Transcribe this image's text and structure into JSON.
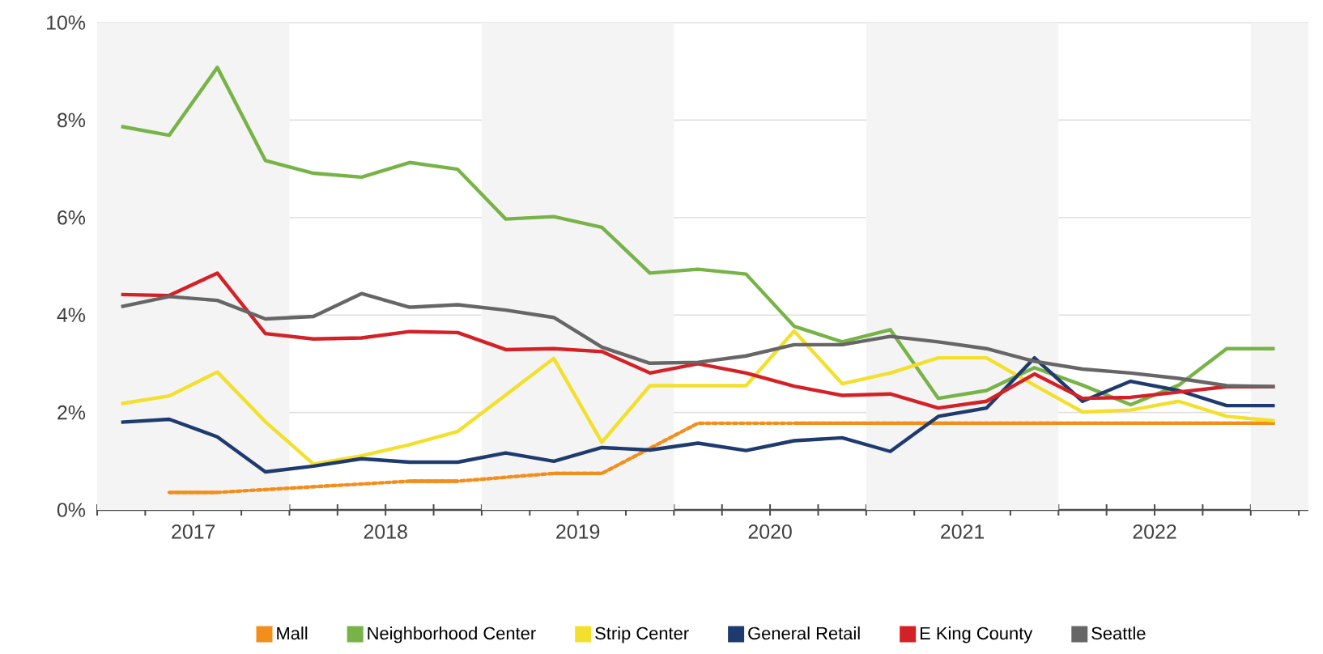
{
  "chart_data": {
    "type": "line",
    "x": [
      2017.125,
      2017.375,
      2017.625,
      2017.875,
      2018.125,
      2018.375,
      2018.625,
      2018.875,
      2019.125,
      2019.375,
      2019.625,
      2019.875,
      2020.125,
      2020.375,
      2020.625,
      2020.875,
      2021.125,
      2021.375,
      2021.625,
      2021.875,
      2022.125,
      2022.375,
      2022.625,
      2022.875,
      2023.125
    ],
    "xlim": [
      2017,
      2023.3
    ],
    "xticks": [
      {
        "value": 2017,
        "label": null
      },
      {
        "value": 2017.25,
        "label": null
      },
      {
        "value": 2017.5,
        "label": "2017"
      },
      {
        "value": 2017.75,
        "label": null
      },
      {
        "value": 2018,
        "label": null
      },
      {
        "value": 2018.25,
        "label": null
      },
      {
        "value": 2018.5,
        "label": "2018"
      },
      {
        "value": 2018.75,
        "label": null
      },
      {
        "value": 2019,
        "label": null
      },
      {
        "value": 2019.25,
        "label": null
      },
      {
        "value": 2019.5,
        "label": "2019"
      },
      {
        "value": 2019.75,
        "label": null
      },
      {
        "value": 2020,
        "label": null
      },
      {
        "value": 2020.25,
        "label": null
      },
      {
        "value": 2020.5,
        "label": "2020"
      },
      {
        "value": 2020.75,
        "label": null
      },
      {
        "value": 2021,
        "label": null
      },
      {
        "value": 2021.25,
        "label": null
      },
      {
        "value": 2021.5,
        "label": "2021"
      },
      {
        "value": 2021.75,
        "label": null
      },
      {
        "value": 2022,
        "label": null
      },
      {
        "value": 2022.25,
        "label": null
      },
      {
        "value": 2022.5,
        "label": "2022"
      },
      {
        "value": 2022.75,
        "label": null
      },
      {
        "value": 2023,
        "label": null
      },
      {
        "value": 2023.25,
        "label": null
      }
    ],
    "ylim": [
      0,
      10
    ],
    "yticks": [
      {
        "value": 0,
        "label": "0%"
      },
      {
        "value": 2,
        "label": "2%"
      },
      {
        "value": 4,
        "label": "4%"
      },
      {
        "value": 6,
        "label": "6%"
      },
      {
        "value": 8,
        "label": "8%"
      },
      {
        "value": 10,
        "label": "10%"
      }
    ],
    "grid": "y",
    "legend": "bottom",
    "marker": "none",
    "line_style": "solid",
    "bands": [
      {
        "axis": "x",
        "from": 2017,
        "to": 2018,
        "color": "#f4f4f4"
      },
      {
        "axis": "x",
        "from": 2019,
        "to": 2020,
        "color": "#f4f4f4"
      },
      {
        "axis": "x",
        "from": 2021,
        "to": 2022,
        "color": "#f4f4f4"
      },
      {
        "axis": "x",
        "from": 2023,
        "to": 2023.3,
        "color": "#f4f4f4"
      }
    ],
    "series": [
      {
        "name": "Mall",
        "color": "#f28e1c",
        "values": [
          null,
          0.36,
          0.36,
          null,
          null,
          null,
          0.59,
          0.59,
          null,
          0.75,
          0.75,
          null,
          1.78,
          null,
          1.78,
          1.78,
          1.78,
          1.78,
          1.78,
          1.78,
          1.78,
          1.78,
          1.78,
          1.78,
          1.78
        ]
      },
      {
        "name": "Neighborhood Center",
        "color": "#77b347",
        "values": [
          7.87,
          7.69,
          9.08,
          7.17,
          6.91,
          6.83,
          7.13,
          6.99,
          5.97,
          6.02,
          5.8,
          4.86,
          4.94,
          4.84,
          3.77,
          3.45,
          3.7,
          2.29,
          2.45,
          2.92,
          2.56,
          2.16,
          2.56,
          3.31,
          3.31
        ]
      },
      {
        "name": "Strip Center",
        "color": "#f2e02c",
        "values": [
          2.18,
          2.34,
          2.83,
          1.81,
          0.94,
          1.11,
          1.34,
          1.61,
          2.36,
          3.11,
          1.39,
          2.55,
          2.55,
          2.55,
          3.67,
          2.59,
          2.81,
          3.12,
          3.12,
          2.56,
          2.01,
          2.05,
          2.23,
          1.92,
          1.83
        ]
      },
      {
        "name": "General Retail",
        "color": "#1f3a6e",
        "values": [
          1.8,
          1.86,
          1.5,
          0.78,
          0.9,
          1.05,
          0.98,
          0.98,
          1.17,
          1.0,
          1.28,
          1.23,
          1.37,
          1.22,
          1.42,
          1.48,
          1.2,
          1.92,
          2.09,
          3.12,
          2.23,
          2.64,
          2.45,
          2.14,
          2.14
        ]
      },
      {
        "name": "E King County",
        "color": "#d42027",
        "values": [
          4.42,
          4.4,
          4.86,
          3.62,
          3.51,
          3.53,
          3.66,
          3.64,
          3.29,
          3.31,
          3.25,
          2.81,
          3.0,
          2.81,
          2.54,
          2.35,
          2.38,
          2.09,
          2.23,
          2.79,
          2.29,
          2.31,
          2.42,
          2.53,
          2.53
        ]
      },
      {
        "name": "Seattle",
        "color": "#666666",
        "values": [
          4.17,
          4.38,
          4.3,
          3.92,
          3.97,
          4.44,
          4.16,
          4.21,
          4.1,
          3.95,
          3.34,
          3.01,
          3.03,
          3.16,
          3.39,
          3.39,
          3.56,
          3.45,
          3.31,
          3.05,
          2.89,
          2.81,
          2.7,
          2.55,
          2.53
        ]
      }
    ]
  }
}
